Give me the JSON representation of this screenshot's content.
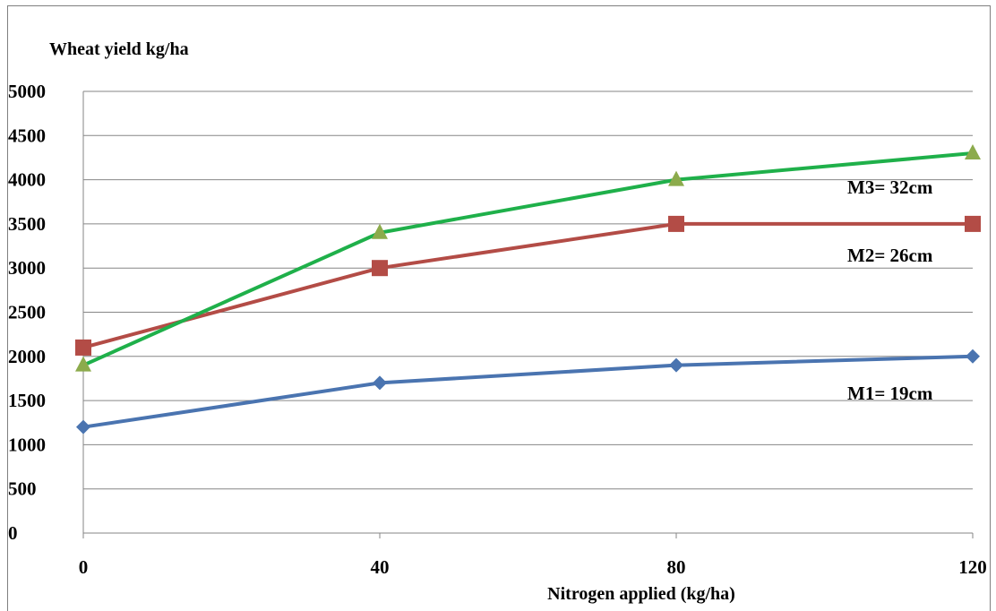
{
  "chart_data": {
    "type": "line",
    "ylabel": "Wheat yield kg/ha",
    "xlabel": "Nitrogen applied (kg/ha)",
    "x": [
      0,
      40,
      80,
      120
    ],
    "xlim": [
      0,
      120
    ],
    "ylim": [
      0,
      5000
    ],
    "yticks": [
      0,
      500,
      1000,
      1500,
      2000,
      2500,
      3000,
      3500,
      4000,
      4500,
      5000
    ],
    "grid": true,
    "series": [
      {
        "name": "M1= 19cm",
        "values": [
          1200,
          1700,
          1900,
          2000
        ],
        "color": "#4a74b0",
        "marker": "diamond"
      },
      {
        "name": "M2= 26cm",
        "values": [
          2100,
          3000,
          3500,
          3500
        ],
        "color": "#b34c46",
        "marker": "square"
      },
      {
        "name": "M3= 32cm",
        "values": [
          1900,
          3400,
          4000,
          4300
        ],
        "color": "#1fb04a",
        "markerColor": "#8cab4c",
        "marker": "triangle"
      }
    ]
  }
}
